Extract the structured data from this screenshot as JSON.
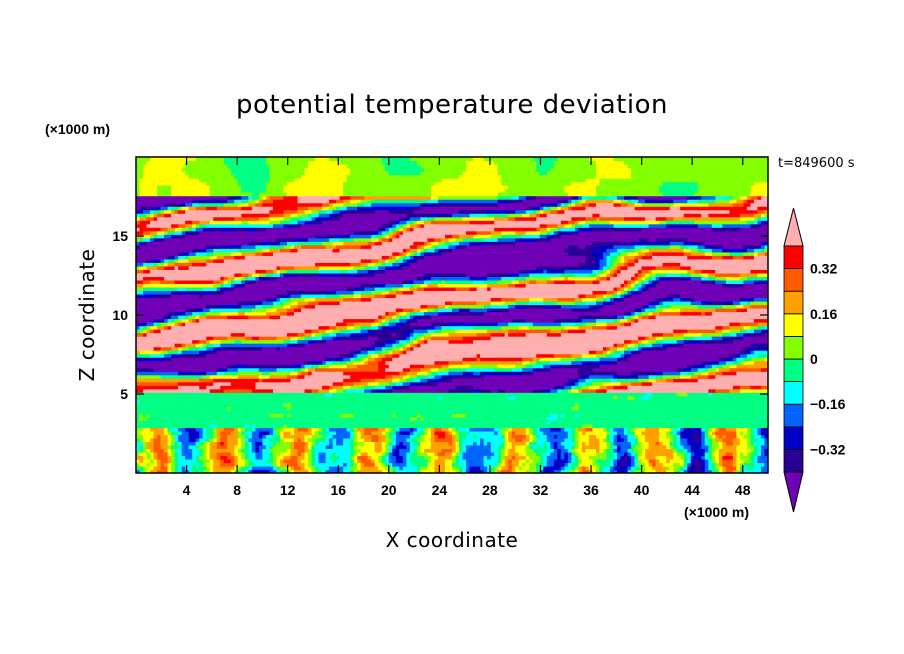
{
  "chart_data": {
    "type": "heatmap",
    "title": "potential temperature deviation",
    "xlabel": "X coordinate",
    "ylabel": "Z coordinate",
    "x_unit": "(×1000 m)",
    "y_unit": "(×1000 m)",
    "time_label": "t=849600 s",
    "xlim": [
      0,
      50
    ],
    "ylim": [
      0,
      20
    ],
    "x_ticks": [
      4,
      8,
      12,
      16,
      20,
      24,
      28,
      32,
      36,
      40,
      44,
      48
    ],
    "y_ticks": [
      5,
      10,
      15
    ],
    "colorbar": {
      "levels": [
        -0.4,
        -0.32,
        -0.24,
        -0.16,
        -0.08,
        0,
        0.08,
        0.16,
        0.24,
        0.32,
        0.4
      ],
      "labels": [
        "0.32",
        "0.16",
        "0",
        "−0.16",
        "−0.32"
      ],
      "label_values": [
        0.32,
        0.16,
        0,
        -0.16,
        -0.32
      ],
      "colors": [
        "#6f00b6",
        "#2a0096",
        "#0000c8",
        "#0064ff",
        "#00ffff",
        "#00ff82",
        "#82ff00",
        "#ffff00",
        "#ffa000",
        "#ff5a00",
        "#ff0000",
        "#ffafaf"
      ],
      "extend": "both"
    }
  }
}
